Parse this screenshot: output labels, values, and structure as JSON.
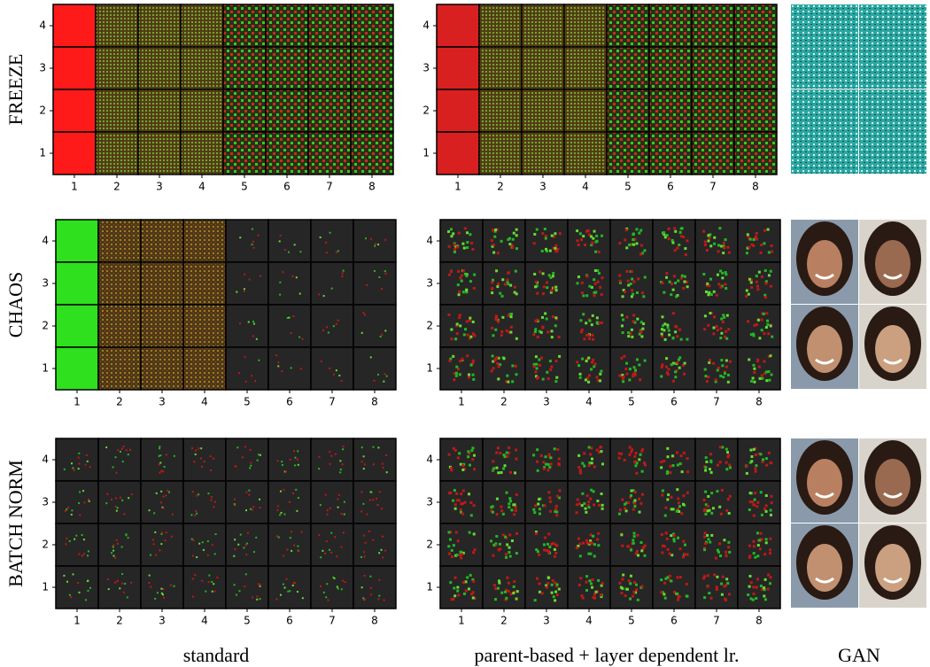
{
  "rows": [
    {
      "label": "FREEZE"
    },
    {
      "label": "CHAOS"
    },
    {
      "label": "BATCH NORM"
    }
  ],
  "captions": [
    "standard",
    "parent-based + layer dependent lr.",
    "GAN"
  ],
  "xticks": [
    1,
    2,
    3,
    4,
    5,
    6,
    7,
    8
  ],
  "yticks": [
    1,
    2,
    3,
    4
  ]
}
